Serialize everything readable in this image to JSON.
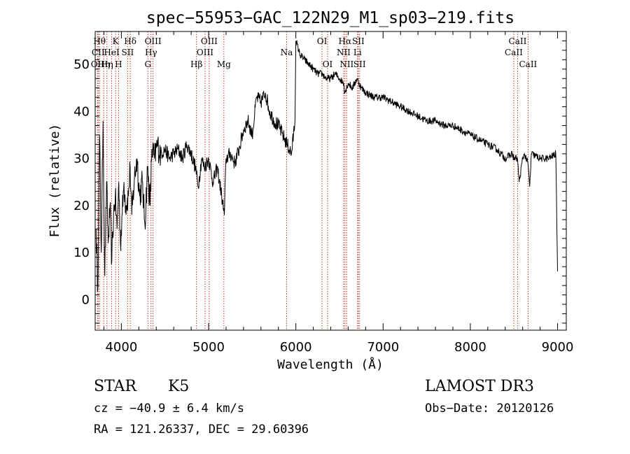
{
  "chart_data": {
    "type": "line",
    "title": "spec−55953−GAC_122N29_M1_sp03−219.fits",
    "xlabel": "Wavelength (Å)",
    "ylabel": "Flux (relative)",
    "xlim": [
      3700,
      9100
    ],
    "ylim": [
      -6.5,
      57
    ],
    "xticks": [
      {
        "value": 4000,
        "label": "4000"
      },
      {
        "value": 5000,
        "label": "5000"
      },
      {
        "value": 6000,
        "label": "6000"
      },
      {
        "value": 7000,
        "label": "7000"
      },
      {
        "value": 8000,
        "label": "8000"
      },
      {
        "value": 9000,
        "label": "9000"
      }
    ],
    "yticks": [
      {
        "value": 0,
        "label": "0"
      },
      {
        "value": 10,
        "label": "10"
      },
      {
        "value": 20,
        "label": "20"
      },
      {
        "value": 30,
        "label": "30"
      },
      {
        "value": 40,
        "label": "40"
      },
      {
        "value": 50,
        "label": "50"
      }
    ],
    "series": [
      {
        "name": "spectrum",
        "x": [
          3710,
          3730,
          3750,
          3770,
          3790,
          3810,
          3830,
          3850,
          3870,
          3890,
          3910,
          3930,
          3950,
          3970,
          3990,
          4010,
          4030,
          4050,
          4080,
          4100,
          4120,
          4150,
          4180,
          4210,
          4240,
          4270,
          4300,
          4330,
          4350,
          4380,
          4410,
          4450,
          4500,
          4550,
          4600,
          4650,
          4700,
          4750,
          4800,
          4850,
          4880,
          4920,
          4950,
          5000,
          5050,
          5100,
          5150,
          5180,
          5200,
          5250,
          5300,
          5350,
          5400,
          5450,
          5500,
          5550,
          5600,
          5650,
          5700,
          5750,
          5800,
          5850,
          5900,
          5950,
          5990,
          6000,
          6050,
          6100,
          6150,
          6200,
          6250,
          6300,
          6350,
          6400,
          6450,
          6500,
          6550,
          6560,
          6600,
          6650,
          6700,
          6750,
          6800,
          6900,
          7000,
          7100,
          7200,
          7300,
          7400,
          7500,
          7600,
          7700,
          7800,
          7900,
          8000,
          8100,
          8200,
          8300,
          8400,
          8480,
          8500,
          8540,
          8560,
          8600,
          8620,
          8660,
          8680,
          8700,
          8800,
          8900,
          8980,
          9000
        ],
        "y": [
          15,
          2,
          35,
          10,
          38,
          5,
          25,
          12,
          20,
          8,
          18,
          22,
          15,
          25,
          12,
          18,
          25,
          20,
          22,
          28,
          18,
          26,
          30,
          22,
          25,
          16,
          28,
          20,
          32,
          30,
          33,
          31,
          32,
          30,
          31,
          32,
          30,
          33,
          31,
          28,
          24,
          30,
          28,
          30,
          25,
          28,
          22,
          18,
          30,
          31,
          29,
          32,
          36,
          38,
          35,
          43,
          42,
          44,
          40,
          38,
          37,
          35,
          33,
          31,
          38,
          55,
          52,
          51,
          50,
          49,
          48,
          48,
          47,
          47,
          48,
          47,
          46,
          44,
          46,
          45,
          47,
          45,
          44,
          43,
          43,
          42,
          41,
          40,
          39,
          38,
          38,
          37,
          37,
          36,
          35,
          34,
          33,
          32,
          30,
          31,
          30,
          30,
          25,
          30,
          31,
          29,
          24,
          31,
          30,
          30,
          31,
          6
        ]
      }
    ],
    "line_ids": [
      {
        "x": 3727,
        "label": "OII",
        "row": 3
      },
      {
        "x": 3734,
        "label": "CII",
        "row": 2
      },
      {
        "x": 3750,
        "label": "Hθ",
        "row": 1
      },
      {
        "x": 3798,
        "label": "Hη",
        "row": 3
      },
      {
        "x": 3835,
        "label": "Hη",
        "row": 3
      },
      {
        "x": 3889,
        "label": "HeI",
        "row": 2
      },
      {
        "x": 3934,
        "label": "K",
        "row": 1
      },
      {
        "x": 3968,
        "label": "H",
        "row": 3
      },
      {
        "x": 4072,
        "label": "SII",
        "row": 2
      },
      {
        "x": 4102,
        "label": "Hδ",
        "row": 1
      },
      {
        "x": 4304,
        "label": "G",
        "row": 3
      },
      {
        "x": 4340,
        "label": "Hγ",
        "row": 2
      },
      {
        "x": 4363,
        "label": "OIII",
        "row": 1
      },
      {
        "x": 4861,
        "label": "Hβ",
        "row": 3
      },
      {
        "x": 4959,
        "label": "OIII",
        "row": 2
      },
      {
        "x": 5007,
        "label": "OIII",
        "row": 1
      },
      {
        "x": 5175,
        "label": "Mg",
        "row": 3
      },
      {
        "x": 5894,
        "label": "Na",
        "row": 2
      },
      {
        "x": 6300,
        "label": "OI",
        "row": 1
      },
      {
        "x": 6364,
        "label": "OI",
        "row": 3
      },
      {
        "x": 6548,
        "label": "NII",
        "row": 2
      },
      {
        "x": 6563,
        "label": "Hα",
        "row": 1
      },
      {
        "x": 6583,
        "label": "NII",
        "row": 3
      },
      {
        "x": 6707,
        "label": "Li",
        "row": 2
      },
      {
        "x": 6716,
        "label": "SII",
        "row": 1
      },
      {
        "x": 6731,
        "label": "SII",
        "row": 3
      },
      {
        "x": 8498,
        "label": "CaII",
        "row": 2
      },
      {
        "x": 8542,
        "label": "CaII",
        "row": 1
      },
      {
        "x": 8662,
        "label": "CaII",
        "row": 3
      }
    ]
  },
  "info": {
    "class": "STAR",
    "subclass": "K5",
    "survey": "LAMOST DR3",
    "cz": "cz = −40.9 ± 6.4 km/s",
    "obs_date": "Obs−Date: 20120126",
    "coords": "RA = 121.26337, DEC =  29.60396"
  },
  "colors": {
    "line_marker": "#c0392b",
    "spectrum": "#000000"
  }
}
